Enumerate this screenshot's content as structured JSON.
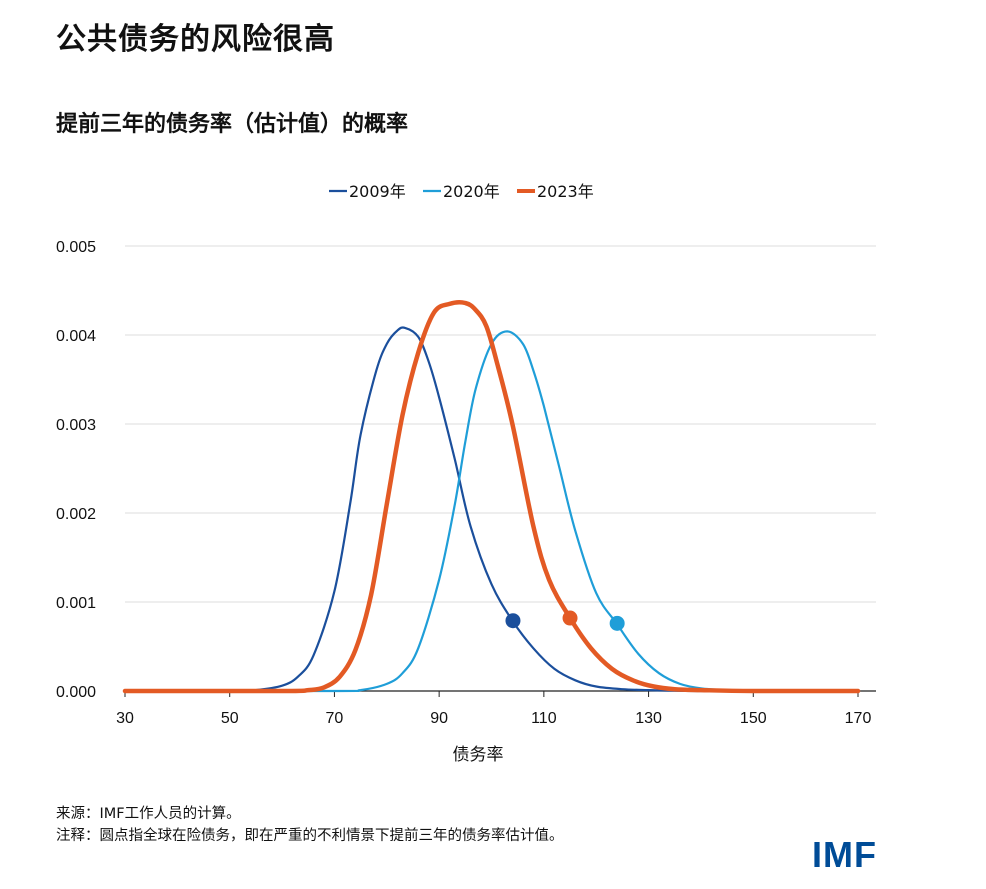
{
  "title": "公共债务的风险很高",
  "subtitle": "提前三年的债务率（估计值）的概率",
  "source_lines": [
    "来源：IMF工作人员的计算。",
    "注释：圆点指全球在险债务，即在严重的不利情景下提前三年的债务率估计值。"
  ],
  "logo_text": "IMF",
  "chart_data": {
    "type": "line",
    "xlabel": "债务率",
    "ylabel": "",
    "xlim": [
      30,
      170
    ],
    "ylim": [
      0,
      0.005
    ],
    "x_ticks": [
      30,
      50,
      70,
      90,
      110,
      130,
      150,
      170
    ],
    "y_ticks": [
      0.0,
      0.001,
      0.002,
      0.003,
      0.004,
      0.005
    ],
    "y_tick_labels": [
      "0.000",
      "0.001",
      "0.002",
      "0.003",
      "0.004",
      "0.005"
    ],
    "x_tick_labels": [
      "30",
      "50",
      "70",
      "90",
      "110",
      "130",
      "150",
      "170"
    ],
    "grid": "horizontal",
    "legend_position": "top-center",
    "series": [
      {
        "name": "2009年",
        "color": "#1b4f9c",
        "x": [
          30,
          50,
          55,
          60,
          63,
          66,
          70,
          73,
          75,
          78,
          80,
          82,
          83.5,
          86,
          88,
          90,
          93,
          96,
          100,
          104,
          108,
          112,
          116,
          120,
          125,
          130,
          140,
          150,
          170
        ],
        "y": [
          0,
          0,
          1e-05,
          6e-05,
          0.00016,
          0.0004,
          0.00112,
          0.0021,
          0.00288,
          0.0036,
          0.0039,
          0.00405,
          0.00408,
          0.00398,
          0.0037,
          0.0033,
          0.0026,
          0.00185,
          0.0012,
          0.00079,
          0.00048,
          0.00025,
          0.00012,
          5e-05,
          2e-05,
          1e-05,
          0,
          0,
          0
        ],
        "marker": {
          "x": 104.1,
          "y": 0.00079
        }
      },
      {
        "name": "2020年",
        "color": "#1f9ed8",
        "x": [
          30,
          70,
          75,
          80,
          83,
          86,
          90,
          93,
          95,
          97,
          100,
          103,
          106,
          108,
          110,
          113,
          116,
          120,
          124,
          128,
          132,
          136,
          140,
          145,
          150,
          160,
          170
        ],
        "y": [
          0,
          0,
          1e-05,
          8e-05,
          0.0002,
          0.00048,
          0.00125,
          0.0021,
          0.0028,
          0.0034,
          0.0039,
          0.00404,
          0.0039,
          0.0036,
          0.0032,
          0.0025,
          0.0018,
          0.0011,
          0.00075,
          0.00042,
          0.0002,
          8e-05,
          3e-05,
          1e-05,
          0,
          0,
          0
        ],
        "marker": {
          "x": 124.0,
          "y": 0.00076
        }
      },
      {
        "name": "2023年",
        "color": "#e35a24",
        "x": [
          30,
          60,
          65,
          68,
          71,
          74,
          77,
          80,
          83,
          86,
          89,
          92,
          95,
          97,
          99,
          101,
          104,
          108,
          111,
          115,
          119,
          123,
          127,
          131,
          135,
          140,
          150,
          170
        ],
        "y": [
          0,
          0,
          1e-05,
          4e-05,
          0.00016,
          0.00046,
          0.00108,
          0.0021,
          0.0031,
          0.0038,
          0.00425,
          0.00435,
          0.00436,
          0.00428,
          0.0041,
          0.0037,
          0.003,
          0.00185,
          0.00125,
          0.00082,
          0.00048,
          0.00025,
          0.00012,
          5e-05,
          2e-05,
          1e-05,
          0,
          0
        ],
        "marker": {
          "x": 115.0,
          "y": 0.00082
        }
      }
    ]
  }
}
